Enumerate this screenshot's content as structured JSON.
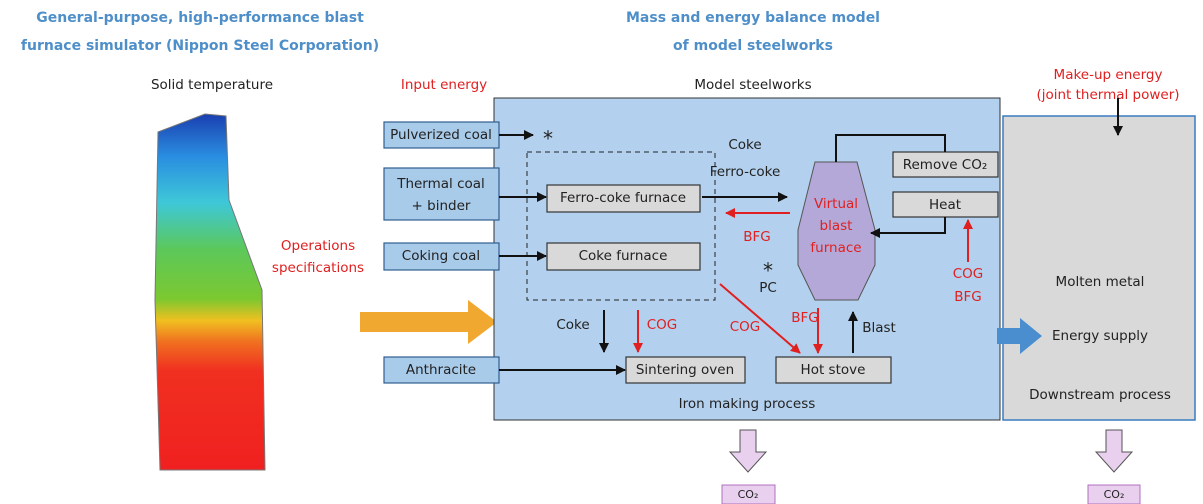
{
  "left_heading": [
    "General-purpose, high-performance blast",
    "furnace simulator (Nippon Steel Corporation)"
  ],
  "center_heading": [
    "Mass and energy balance model",
    "of model steelworks"
  ],
  "solid_temperature": "Solid temperature",
  "input_energy": "Input energy",
  "model_steelworks": "Model steelworks",
  "makeup_energy": [
    "Make-up energy",
    "(joint thermal power)"
  ],
  "operations_specifications": [
    "Operations",
    "specifications"
  ],
  "inputs": {
    "pulverized_coal": "Pulverized coal",
    "thermal_coal": [
      "Thermal coal",
      "+ binder"
    ],
    "coking_coal": "Coking coal",
    "anthracite": "Anthracite"
  },
  "units": {
    "ferro_coke_furnace": "Ferro-coke furnace",
    "coke_furnace": "Coke furnace",
    "remove_co2": "Remove CO₂",
    "heat": "Heat",
    "sintering_oven": "Sintering oven",
    "hot_stove": "Hot stove"
  },
  "virtual_blast_furnace": [
    "Virtual",
    "blast",
    "furnace"
  ],
  "flows": {
    "coke_ferro": [
      "Coke",
      "Ferro-coke"
    ],
    "bfg_return": "BFG",
    "cog_bfg": [
      "COG",
      "BFG"
    ],
    "pc_star": "*",
    "pc": "PC",
    "pulverized_star": "*",
    "coke_down": "Coke",
    "cog_sinter": "COG",
    "cog_stove": "COG",
    "bfg_stove": "BFG",
    "blast": "Blast"
  },
  "iron_making_process": "Iron making process",
  "downstream": [
    "Molten metal",
    "Energy supply",
    "Downstream process"
  ],
  "co2_outputs": [
    "CO₂",
    "CO₂"
  ]
}
